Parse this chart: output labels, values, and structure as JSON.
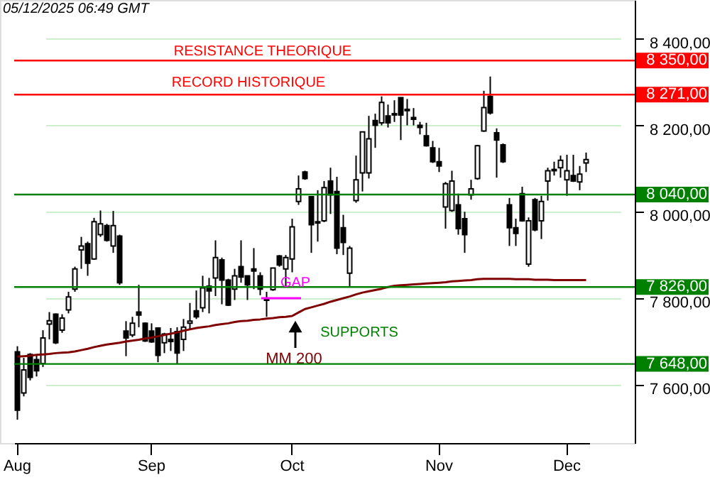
{
  "chart_data": {
    "type": "candlestick",
    "subtitle": "05/12/2025 06:49 GMT",
    "categories": [
      "Aug",
      null,
      null,
      null,
      null,
      null,
      null,
      null,
      null,
      null,
      null,
      null,
      null,
      null,
      null,
      null,
      null,
      null,
      null,
      null,
      null,
      "Sep",
      null,
      null,
      null,
      null,
      null,
      null,
      null,
      null,
      null,
      null,
      null,
      null,
      null,
      null,
      null,
      null,
      null,
      null,
      null,
      null,
      null,
      "Oct",
      null,
      null,
      null,
      null,
      null,
      null,
      null,
      null,
      null,
      null,
      null,
      null,
      null,
      null,
      null,
      null,
      null,
      null,
      null,
      null,
      null,
      null,
      "Nov",
      null,
      null,
      null,
      null,
      null,
      null,
      null,
      null,
      null,
      null,
      null,
      null,
      null,
      null,
      null,
      null,
      null,
      null,
      null,
      "Dec",
      null,
      null,
      null
    ],
    "ohlc": [
      [
        7676,
        7689,
        7519,
        7541
      ],
      [
        7581,
        7662,
        7573,
        7634
      ],
      [
        7670,
        7673,
        7610,
        7617
      ],
      [
        7658,
        7669,
        7619,
        7632
      ],
      [
        7649,
        7726,
        7641,
        7708
      ],
      [
        7740,
        7768,
        7705,
        7748
      ],
      [
        7763,
        7765,
        7694,
        7697
      ],
      [
        7726,
        7763,
        7720,
        7754
      ],
      [
        7773,
        7815,
        7765,
        7803
      ],
      [
        7821,
        7873,
        7815,
        7868
      ],
      [
        7912,
        7942,
        7868,
        7921
      ],
      [
        7926,
        7931,
        7852,
        7881
      ],
      [
        7891,
        7986,
        7889,
        7977
      ],
      [
        7947,
        8003,
        7942,
        7972
      ],
      [
        7968,
        7972,
        7931,
        7934
      ],
      [
        7921,
        8002,
        7905,
        7968
      ],
      [
        7944,
        7947,
        7831,
        7836
      ],
      [
        7724,
        7747,
        7666,
        7708
      ],
      [
        7715,
        7757,
        7710,
        7742
      ],
      [
        7768,
        7831,
        7733,
        7761
      ],
      [
        7742,
        7744,
        7699,
        7701
      ],
      [
        7724,
        7742,
        7697,
        7699
      ],
      [
        7731,
        7733,
        7652,
        7668
      ],
      [
        7697,
        7720,
        7673,
        7717
      ],
      [
        7705,
        7731,
        7678,
        7700
      ],
      [
        7723,
        7733,
        7649,
        7673
      ],
      [
        7705,
        7752,
        7678,
        7733
      ],
      [
        7742,
        7789,
        7726,
        7747
      ],
      [
        7771,
        7818,
        7752,
        7757
      ],
      [
        7778,
        7852,
        7768,
        7824
      ],
      [
        7828,
        7847,
        7765,
        7817
      ],
      [
        7847,
        7934,
        7805,
        7894
      ],
      [
        7889,
        7894,
        7786,
        7842
      ],
      [
        7842,
        7845,
        7782,
        7784
      ],
      [
        7821,
        7868,
        7796,
        7852
      ],
      [
        7873,
        7934,
        7836,
        7849
      ],
      [
        7852,
        7852,
        7796,
        7831
      ],
      [
        7868,
        7916,
        7821,
        7863
      ],
      [
        7852,
        7860,
        7807,
        7821
      ],
      [
        7800,
        7815,
        7757,
        7795
      ],
      [
        7820,
        7870,
        7817,
        7870
      ],
      [
        7898,
        7900,
        7873,
        7877
      ],
      [
        7868,
        7900,
        7828,
        7894
      ],
      [
        7891,
        7984,
        7860,
        7965
      ],
      [
        8024,
        8084,
        8016,
        8053
      ],
      [
        8092,
        8095,
        8074,
        8077
      ],
      [
        8035,
        8035,
        7905,
        7970
      ],
      [
        7977,
        8050,
        7931,
        7974
      ],
      [
        7979,
        8071,
        7976,
        8056
      ],
      [
        8071,
        8102,
        7995,
        8039
      ],
      [
        8047,
        8081,
        7902,
        7916
      ],
      [
        7963,
        7993,
        7900,
        7929
      ],
      [
        7858,
        7921,
        7826,
        7916
      ],
      [
        8026,
        8130,
        8021,
        8074
      ],
      [
        8090,
        8185,
        8047,
        8185
      ],
      [
        8090,
        8222,
        8077,
        8169
      ],
      [
        8211,
        8227,
        8148,
        8200
      ],
      [
        8206,
        8267,
        8200,
        8253
      ],
      [
        8222,
        8248,
        8195,
        8206
      ],
      [
        8224,
        8258,
        8208,
        8227
      ],
      [
        8264,
        8264,
        8166,
        8224
      ],
      [
        8237,
        8261,
        8200,
        8234
      ],
      [
        8218,
        8240,
        8200,
        8214
      ],
      [
        8200,
        8208,
        8179,
        8195
      ],
      [
        8176,
        8206,
        8151,
        8153
      ],
      [
        8148,
        8164,
        8113,
        8116
      ],
      [
        8116,
        8148,
        8092,
        8106
      ],
      [
        8011,
        8069,
        7961,
        8065
      ],
      [
        8003,
        8095,
        8000,
        8071
      ],
      [
        8016,
        8042,
        7947,
        7961
      ],
      [
        7984,
        8000,
        7905,
        7947
      ],
      [
        8039,
        8074,
        8028,
        8053
      ],
      [
        8077,
        8155,
        8074,
        8153
      ],
      [
        8187,
        8280,
        8185,
        8241
      ],
      [
        8267,
        8313,
        8225,
        8229
      ],
      [
        8183,
        8193,
        8079,
        8166
      ],
      [
        8155,
        8158,
        8113,
        8116
      ],
      [
        8016,
        8032,
        7921,
        7963
      ],
      [
        7963,
        7984,
        7921,
        7950
      ],
      [
        8042,
        8058,
        7977,
        7979
      ],
      [
        7879,
        7987,
        7873,
        7979
      ],
      [
        8028,
        8032,
        7955,
        7958
      ],
      [
        7979,
        8037,
        7937,
        8024
      ],
      [
        8071,
        8102,
        8026,
        8095
      ],
      [
        8095,
        8116,
        8084,
        8098
      ],
      [
        8102,
        8130,
        8079,
        8119
      ],
      [
        8074,
        8132,
        8037,
        8095
      ],
      [
        8084,
        8132,
        8069,
        8071
      ],
      [
        8069,
        8106,
        8050,
        8087
      ],
      [
        8113,
        8137,
        8092,
        8121
      ]
    ],
    "series": [
      {
        "type": "line",
        "name": "MM 200",
        "color": "#800000",
        "values": [
          7665,
          7666,
          7667,
          7669,
          7670,
          7671,
          7673,
          7674,
          7675,
          7677,
          7680,
          7683,
          7687,
          7690,
          7693,
          7695,
          7697,
          7700,
          7702,
          7704,
          7707,
          7709,
          7712,
          7715,
          7718,
          7721,
          7725,
          7728,
          7731,
          7733,
          7735,
          7738,
          7740,
          7742,
          7745,
          7747,
          7748,
          7750,
          7751,
          7753,
          7754,
          7756,
          7757,
          7759,
          7767,
          7775,
          7779,
          7783,
          7787,
          7792,
          7796,
          7800,
          7804,
          7809,
          7813,
          7816,
          7819,
          7822,
          7826,
          7829,
          7830,
          7831,
          7832,
          7833,
          7834,
          7835,
          7836,
          7837,
          7839,
          7840,
          7841,
          7842,
          7844,
          7845,
          7845,
          7845,
          7845,
          7845,
          7844,
          7844,
          7844,
          7843,
          7843,
          7843,
          7842,
          7842,
          7842,
          7842,
          7842,
          7842
        ]
      }
    ],
    "ylim": [
      7465,
      8490
    ],
    "yticks": [
      {
        "value": 7600,
        "label": "7 600,00"
      },
      {
        "value": 7800,
        "label": "7 800,00"
      },
      {
        "value": 8000,
        "label": "8 000,00"
      },
      {
        "value": 8200,
        "label": "8 200,00"
      },
      {
        "value": 8400,
        "label": "8 400,00"
      }
    ],
    "grid": "y",
    "ref_lines": [
      {
        "axis": "y",
        "value": 8350,
        "label": "8 350,00",
        "color": "#ff0000"
      },
      {
        "axis": "y",
        "value": 8271,
        "label": "8 271,00",
        "color": "#ff0000"
      },
      {
        "axis": "y",
        "value": 8040,
        "label": "8 040,00",
        "color": "#008000"
      },
      {
        "axis": "y",
        "value": 7826,
        "label": "7 826,00",
        "color": "#008000"
      },
      {
        "axis": "y",
        "value": 7648,
        "label": "7 648,00",
        "color": "#008000"
      }
    ],
    "annotations": [
      "RESISTANCE THEORIQUE",
      "RECORD HISTORIQUE",
      "GAP",
      "SUPPORTS"
    ]
  }
}
